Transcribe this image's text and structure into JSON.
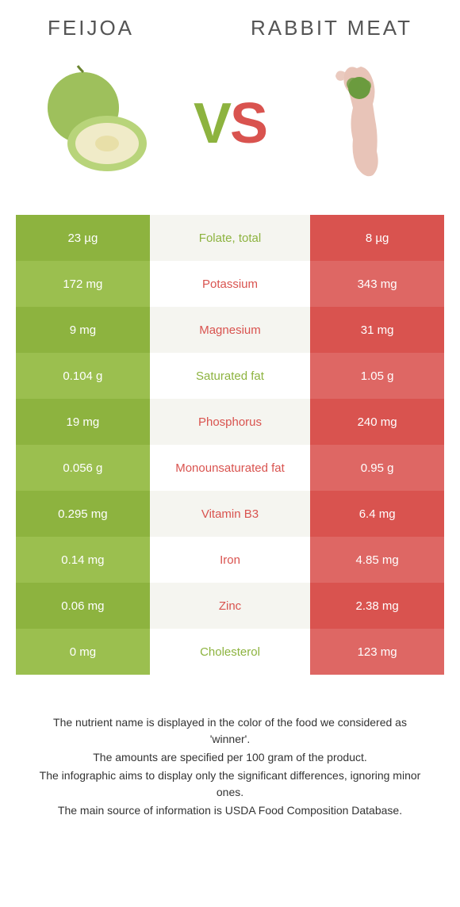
{
  "header": {
    "left_title": "Feijoa",
    "right_title": "Rabbit meat"
  },
  "vs": {
    "v": "V",
    "s": "S"
  },
  "colors": {
    "left_primary": "#8db33f",
    "left_alt": "#9bbf4f",
    "right_primary": "#d9534f",
    "right_alt": "#de6764",
    "mid_bg_a": "#f5f5f0",
    "mid_bg_b": "#ffffff",
    "mid_text_left": "#8db33f",
    "mid_text_right": "#d9534f"
  },
  "rows": [
    {
      "left": "23 µg",
      "label": "Folate, total",
      "right": "8 µg",
      "winner": "left"
    },
    {
      "left": "172 mg",
      "label": "Potassium",
      "right": "343 mg",
      "winner": "right"
    },
    {
      "left": "9 mg",
      "label": "Magnesium",
      "right": "31 mg",
      "winner": "right"
    },
    {
      "left": "0.104 g",
      "label": "Saturated fat",
      "right": "1.05 g",
      "winner": "left"
    },
    {
      "left": "19 mg",
      "label": "Phosphorus",
      "right": "240 mg",
      "winner": "right"
    },
    {
      "left": "0.056 g",
      "label": "Monounsaturated fat",
      "right": "0.95 g",
      "winner": "right"
    },
    {
      "left": "0.295 mg",
      "label": "Vitamin B3",
      "right": "6.4 mg",
      "winner": "right"
    },
    {
      "left": "0.14 mg",
      "label": "Iron",
      "right": "4.85 mg",
      "winner": "right"
    },
    {
      "left": "0.06 mg",
      "label": "Zinc",
      "right": "2.38 mg",
      "winner": "right"
    },
    {
      "left": "0 mg",
      "label": "Cholesterol",
      "right": "123 mg",
      "winner": "left"
    }
  ],
  "footer": {
    "line1": "The nutrient name is displayed in the color of the food we considered as 'winner'.",
    "line2": "The amounts are specified per 100 gram of the product.",
    "line3": "The infographic aims to display only the significant differences, ignoring minor ones.",
    "line4": "The main source of information is USDA Food Composition Database."
  }
}
